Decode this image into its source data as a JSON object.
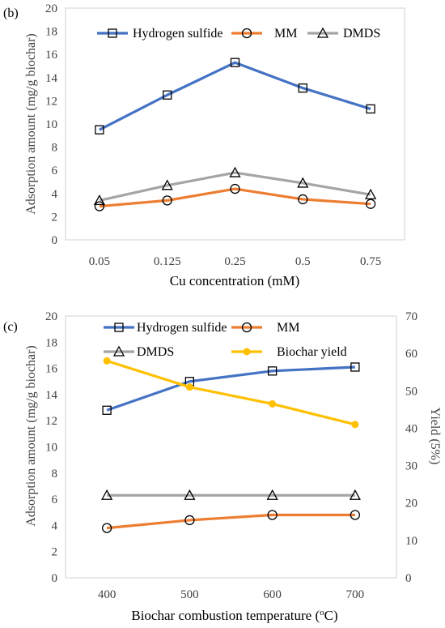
{
  "chart_data": [
    {
      "type": "line",
      "panel_label": "(b)",
      "categories": [
        "0.05",
        "0.125",
        "0.25",
        "0.5",
        "0.75"
      ],
      "xlabel": "Cu concentration (mM)",
      "ylabel": "Adsorption amount (mg/g biochar)",
      "ylim": [
        0,
        20
      ],
      "yticks": [
        0,
        2,
        4,
        6,
        8,
        10,
        12,
        14,
        16,
        18,
        20
      ],
      "grid": false,
      "legend": "top",
      "series": [
        {
          "name": "Hydrogen sulfide",
          "color": "#4472C4",
          "marker": "square",
          "values": [
            9.5,
            12.5,
            15.3,
            13.1,
            11.3
          ]
        },
        {
          "name": "MM",
          "color": "#ED7D31",
          "marker": "circle",
          "values": [
            2.9,
            3.4,
            4.4,
            3.5,
            3.1
          ]
        },
        {
          "name": "DMDS",
          "color": "#A5A5A5",
          "marker": "triangle",
          "values": [
            3.4,
            4.7,
            5.8,
            4.9,
            3.9
          ]
        }
      ]
    },
    {
      "type": "line",
      "panel_label": "(c)",
      "categories": [
        "400",
        "500",
        "600",
        "700"
      ],
      "xlabel_main": "Biochar combustion temperature (",
      "xlabel_sup": "o",
      "xlabel_end": "C)",
      "ylabel": "Adsorption amount (mg/g biochar)",
      "y2label": "Yield (5%)",
      "ylim": [
        0,
        20
      ],
      "yticks": [
        0,
        2,
        4,
        6,
        8,
        10,
        12,
        14,
        16,
        18,
        20
      ],
      "y2lim": [
        0,
        70
      ],
      "y2ticks": [
        0,
        10,
        20,
        30,
        40,
        50,
        60,
        70
      ],
      "grid": false,
      "legend": "top",
      "series": [
        {
          "name": "Hydrogen sulfide",
          "color": "#4472C4",
          "marker": "square",
          "axis": "left",
          "values": [
            12.8,
            15.0,
            15.8,
            16.1
          ]
        },
        {
          "name": "MM",
          "color": "#ED7D31",
          "marker": "circle",
          "axis": "left",
          "values": [
            3.8,
            4.4,
            4.8,
            4.8
          ]
        },
        {
          "name": "DMDS",
          "color": "#A5A5A5",
          "marker": "triangle",
          "axis": "left",
          "values": [
            6.3,
            6.3,
            6.3,
            6.3
          ]
        },
        {
          "name": "Biochar yield",
          "color": "#FFC000",
          "marker": "circle",
          "axis": "right",
          "values": [
            58,
            51,
            46.5,
            41
          ]
        }
      ]
    }
  ]
}
